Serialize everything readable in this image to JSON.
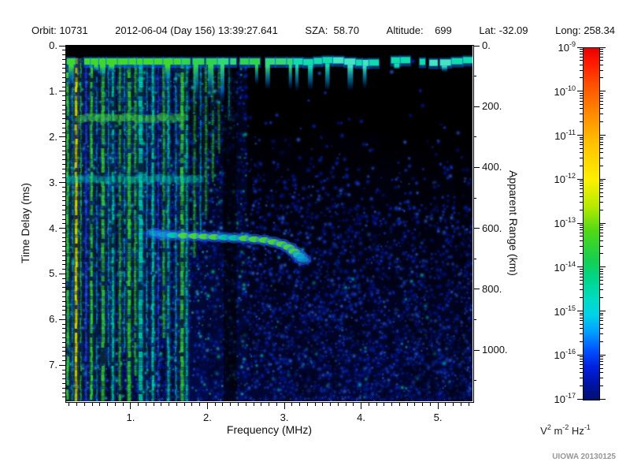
{
  "header": {
    "items": [
      "Orbit: 10731",
      "2012-06-04 (Day 156) 13:39:27.641",
      "SZA:  58.70",
      "Altitude:    699",
      "Lat: -32.09",
      "Long: 258.34"
    ]
  },
  "axes": {
    "x": {
      "title": "Frequency (MHz)",
      "range": [
        0.16,
        5.45
      ],
      "minor_step": 0.1,
      "major_ticks": [
        {
          "label": "1.",
          "value": 1
        },
        {
          "label": "2.",
          "value": 2
        },
        {
          "label": "3.",
          "value": 3
        },
        {
          "label": "4.",
          "value": 4
        },
        {
          "label": "5.",
          "value": 5
        }
      ]
    },
    "y_left": {
      "title": "Time Delay (ms)",
      "range": [
        0,
        7.79
      ],
      "minor_step": 0.1,
      "major_ticks": [
        {
          "label": "0.",
          "value": 0
        },
        {
          "label": "1.",
          "value": 1
        },
        {
          "label": "2.",
          "value": 2
        },
        {
          "label": "3.",
          "value": 3
        },
        {
          "label": "4.",
          "value": 4
        },
        {
          "label": "5.",
          "value": 5
        },
        {
          "label": "6.",
          "value": 6
        },
        {
          "label": "7.",
          "value": 7
        }
      ]
    },
    "y_right": {
      "title": "Apparent Range (km)",
      "range": [
        0,
        1168
      ],
      "minor_step": 100,
      "major_ticks": [
        {
          "label": "0.",
          "value": 0
        },
        {
          "label": "200.",
          "value": 200
        },
        {
          "label": "400.",
          "value": 400
        },
        {
          "label": "600.",
          "value": 600
        },
        {
          "label": "800.",
          "value": 800
        },
        {
          "label": "1000.",
          "value": 1000
        }
      ]
    }
  },
  "colorbar": {
    "base": "10",
    "exponents": [
      "-9",
      "-10",
      "-11",
      "-12",
      "-13",
      "-14",
      "-15",
      "-16",
      "-17"
    ],
    "unit_parts": [
      [
        "V",
        "2"
      ],
      [
        "m",
        "-2"
      ],
      [
        "Hz",
        "-1"
      ]
    ],
    "gradient": [
      [
        0,
        "#e60000"
      ],
      [
        0.04,
        "#ff1800"
      ],
      [
        0.1,
        "#ff4c00"
      ],
      [
        0.18,
        "#ff8600"
      ],
      [
        0.27,
        "#ffc100"
      ],
      [
        0.375,
        "#fdf000"
      ],
      [
        0.45,
        "#b6ea00"
      ],
      [
        0.52,
        "#4fd915"
      ],
      [
        0.6,
        "#17cf4e"
      ],
      [
        0.655,
        "#00d689"
      ],
      [
        0.72,
        "#00dcc8"
      ],
      [
        0.76,
        "#00d2ea"
      ],
      [
        0.81,
        "#009cff"
      ],
      [
        0.86,
        "#0051ff"
      ],
      [
        0.905,
        "#0022e0"
      ],
      [
        0.95,
        "#0013ad"
      ],
      [
        1,
        "#001070"
      ]
    ]
  },
  "credit": "UIOWA 20130125",
  "chart_data": {
    "type": "heatmap",
    "title": "",
    "xlabel": "Frequency (MHz)",
    "x_range_mhz": [
      0.16,
      5.45
    ],
    "ylabel": "Time Delay (ms)",
    "y_range_ms": [
      0,
      7.79
    ],
    "y2label": "Apparent Range (km)",
    "y2_range_km": [
      0,
      1168
    ],
    "colorbar_unit": "V^2 m^-2 Hz^-1",
    "colorbar_min": "1e-17",
    "colorbar_max": "1e-9",
    "colorbar_scale": "log",
    "noise_seed": 7,
    "features": {
      "top_blank_ms": 0.26,
      "echo_band_ms": 0.33,
      "resonance_stripes": [
        {
          "mhz": 0.18,
          "color": "green",
          "w": 3,
          "alpha": 0.9,
          "end_ms": 7.79
        },
        {
          "mhz": 0.24,
          "color": "teal",
          "w": 2,
          "alpha": 0.5,
          "end_ms": 7.79
        },
        {
          "mhz": 0.29,
          "color": "yellow",
          "w": 3,
          "alpha": 0.95,
          "end_ms": 7.79
        },
        {
          "mhz": 0.35,
          "color": "green",
          "w": 2,
          "alpha": 0.6,
          "end_ms": 7.79
        },
        {
          "mhz": 0.42,
          "color": "blue",
          "w": 3,
          "alpha": 0.5,
          "end_ms": 7.79
        },
        {
          "mhz": 0.49,
          "color": "green",
          "w": 3,
          "alpha": 0.9,
          "end_ms": 7.79
        },
        {
          "mhz": 0.56,
          "color": "teal",
          "w": 2,
          "alpha": 0.45,
          "end_ms": 7.79
        },
        {
          "mhz": 0.64,
          "color": "green",
          "w": 4,
          "alpha": 0.8,
          "end_ms": 7.79
        },
        {
          "mhz": 0.71,
          "color": "teal",
          "w": 2,
          "alpha": 0.5,
          "end_ms": 7.0
        },
        {
          "mhz": 0.77,
          "color": "cyan",
          "w": 3,
          "alpha": 0.7,
          "end_ms": 7.79
        },
        {
          "mhz": 0.86,
          "color": "green",
          "w": 3,
          "alpha": 0.6,
          "end_ms": 7.79
        },
        {
          "mhz": 0.92,
          "color": "teal",
          "w": 2,
          "alpha": 0.5,
          "end_ms": 6.6
        },
        {
          "mhz": 0.98,
          "color": "green",
          "w": 4,
          "alpha": 0.85,
          "end_ms": 7.79
        },
        {
          "mhz": 1.06,
          "color": "green",
          "w": 3,
          "alpha": 0.6,
          "end_ms": 7.2
        },
        {
          "mhz": 1.13,
          "color": "cyan",
          "w": 5,
          "alpha": 0.8,
          "end_ms": 7.79
        },
        {
          "mhz": 1.21,
          "color": "teal",
          "w": 2,
          "alpha": 0.5,
          "end_ms": 7.79
        },
        {
          "mhz": 1.29,
          "color": "cyan",
          "w": 3,
          "alpha": 0.8,
          "end_ms": 7.79
        },
        {
          "mhz": 1.36,
          "color": "blue",
          "w": 2,
          "alpha": 0.5,
          "end_ms": 7.79
        },
        {
          "mhz": 1.43,
          "color": "green",
          "w": 3,
          "alpha": 0.6,
          "end_ms": 6.4
        },
        {
          "mhz": 1.49,
          "color": "cyan",
          "w": 3,
          "alpha": 0.6,
          "end_ms": 7.79
        },
        {
          "mhz": 1.59,
          "color": "teal",
          "w": 2,
          "alpha": 0.5,
          "end_ms": 7.79
        },
        {
          "mhz": 1.67,
          "color": "green",
          "w": 4,
          "alpha": 0.85,
          "end_ms": 7.79
        },
        {
          "mhz": 1.73,
          "color": "cyan",
          "w": 3,
          "alpha": 0.6,
          "end_ms": 7.79
        },
        {
          "mhz": 1.83,
          "color": "green",
          "w": 3,
          "alpha": 0.5,
          "end_ms": 4.6
        },
        {
          "mhz": 1.91,
          "color": "teal",
          "w": 2,
          "alpha": 0.45,
          "end_ms": 4.2
        },
        {
          "mhz": 1.98,
          "color": "green",
          "w": 3,
          "alpha": 0.5,
          "end_ms": 3.7
        },
        {
          "mhz": 2.07,
          "color": "green",
          "w": 3,
          "alpha": 0.45,
          "end_ms": 2.9
        },
        {
          "mhz": 2.15,
          "color": "green",
          "w": 3,
          "alpha": 0.4,
          "end_ms": 2.3
        },
        {
          "mhz": 2.28,
          "color": "teal",
          "w": 2,
          "alpha": 0.4,
          "end_ms": 1.6
        }
      ],
      "horizontal_bands": [
        {
          "mhz_span": [
            0.35,
            1.7
          ],
          "ms": 1.58,
          "color": "green",
          "alpha": 0.5
        },
        {
          "mhz_span": [
            0.16,
            1.95
          ],
          "ms": 2.92,
          "color": "cyan",
          "alpha": 0.38
        }
      ],
      "absorption_bands": [
        {
          "mhz_span": [
            2.21,
            2.38
          ],
          "alpha": 0.6
        },
        {
          "mhz_span": [
            4.78,
            4.99
          ],
          "alpha": 0.2
        },
        {
          "mhz_span": [
            5.22,
            5.37
          ],
          "alpha": 0.22
        }
      ],
      "echo_trace": [
        {
          "mhz": 1.31,
          "ms": 4.11,
          "k": "f"
        },
        {
          "mhz": 1.43,
          "ms": 4.14,
          "k": "f"
        },
        {
          "mhz": 1.55,
          "ms": 4.15,
          "k": "c"
        },
        {
          "mhz": 1.69,
          "ms": 4.16,
          "k": "g"
        },
        {
          "mhz": 1.83,
          "ms": 4.17,
          "k": "g"
        },
        {
          "mhz": 1.96,
          "ms": 4.18,
          "k": "g"
        },
        {
          "mhz": 2.09,
          "ms": 4.19,
          "k": "g"
        },
        {
          "mhz": 2.22,
          "ms": 4.2,
          "k": "c"
        },
        {
          "mhz": 2.35,
          "ms": 4.21,
          "k": "c"
        },
        {
          "mhz": 2.48,
          "ms": 4.22,
          "k": "g"
        },
        {
          "mhz": 2.61,
          "ms": 4.24,
          "k": "g"
        },
        {
          "mhz": 2.74,
          "ms": 4.26,
          "k": "g"
        },
        {
          "mhz": 2.86,
          "ms": 4.3,
          "k": "g"
        },
        {
          "mhz": 2.97,
          "ms": 4.35,
          "k": "g"
        },
        {
          "mhz": 3.06,
          "ms": 4.42,
          "k": "g"
        },
        {
          "mhz": 3.13,
          "ms": 4.51,
          "k": "g"
        },
        {
          "mhz": 3.19,
          "ms": 4.6,
          "k": "c"
        },
        {
          "mhz": 3.24,
          "ms": 4.68,
          "k": "f"
        }
      ]
    }
  }
}
